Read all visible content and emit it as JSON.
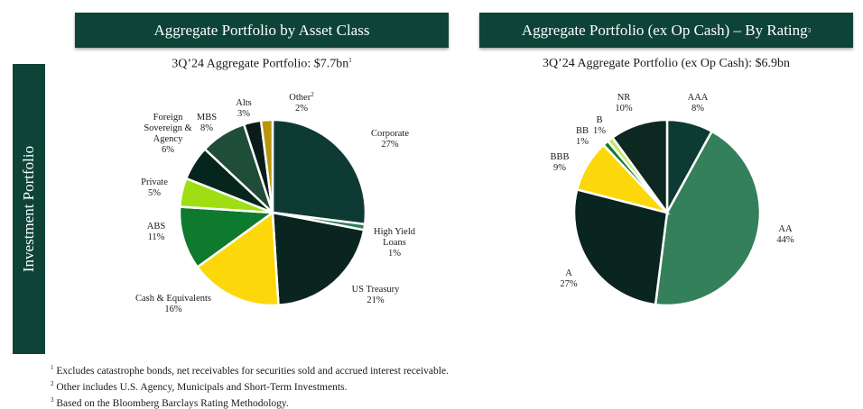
{
  "side_label": "Investment Portfolio",
  "left_header": "Aggregate Portfolio by Asset Class",
  "right_header": "Aggregate Portfolio (ex Op Cash) – By Rating",
  "right_header_sup": "3",
  "left_subtitle": "3Q’24 Aggregate Portfolio: $7.7bn",
  "left_subtitle_sup": "1",
  "right_subtitle": "3Q’24 Aggregate Portfolio (ex Op Cash): $6.9bn",
  "footnotes": [
    {
      "marker": "1",
      "text": "Excludes catastrophe bonds, net receivables for securities sold and accrued interest receivable."
    },
    {
      "marker": "2",
      "text": "Other includes U.S. Agency, Municipals and Short-Term Investments."
    },
    {
      "marker": "3",
      "text": "Based on the Bloomberg Barclays Rating Methodology."
    }
  ],
  "chart_data": [
    {
      "type": "pie",
      "title": "3Q’24 Aggregate Portfolio: $7.7bn",
      "slices": [
        {
          "label": "Corporate",
          "value": 27,
          "pct_label": "27%",
          "color": "#0d3b34"
        },
        {
          "label": "High Yield Loans",
          "value": 1,
          "pct_label": "1%",
          "color": "#2e7d5b"
        },
        {
          "label": "US Treasury",
          "value": 21,
          "pct_label": "21%",
          "color": "#0a2520"
        },
        {
          "label": "Cash & Equivalents",
          "value": 16,
          "pct_label": "16%",
          "color": "#fcd80a"
        },
        {
          "label": "ABS",
          "value": 11,
          "pct_label": "11%",
          "color": "#0e7a2e"
        },
        {
          "label": "Private",
          "value": 5,
          "pct_label": "5%",
          "color": "#9fde12"
        },
        {
          "label": "Foreign Sovereign & Agency",
          "value": 6,
          "pct_label": "6%",
          "color": "#06251d"
        },
        {
          "label": "MBS",
          "value": 8,
          "pct_label": "8%",
          "color": "#1f4d37"
        },
        {
          "label": "Alts",
          "value": 3,
          "pct_label": "3%",
          "color": "#0a1c18"
        },
        {
          "label": "Other",
          "label_sup": "2",
          "value": 2,
          "pct_label": "2%",
          "color": "#b8950a"
        }
      ]
    },
    {
      "type": "pie",
      "title": "3Q’24 Aggregate Portfolio (ex Op Cash): $6.9bn",
      "slices": [
        {
          "label": "AAA",
          "value": 8,
          "pct_label": "8%",
          "color": "#0d3b34"
        },
        {
          "label": "AA",
          "value": 44,
          "pct_label": "44%",
          "color": "#34805a"
        },
        {
          "label": "A",
          "value": 27,
          "pct_label": "27%",
          "color": "#0a2520"
        },
        {
          "label": "BBB",
          "value": 9,
          "pct_label": "9%",
          "color": "#fcd80a"
        },
        {
          "label": "BB",
          "value": 1,
          "pct_label": "1%",
          "color": "#0e7a2e"
        },
        {
          "label": "B",
          "value": 1,
          "pct_label": "1%",
          "color": "#c3e86a"
        },
        {
          "label": "NR",
          "value": 10,
          "pct_label": "10%",
          "color": "#0d2721"
        }
      ]
    }
  ]
}
